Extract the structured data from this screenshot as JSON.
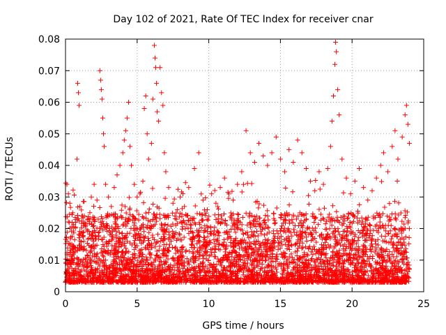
{
  "chart_data": {
    "type": "scatter",
    "title": "Day 102 of 2021, Rate Of TEC Index for receiver cnar",
    "xlabel": "GPS time / hours",
    "ylabel": "ROTI / TECUs",
    "xlim": [
      0,
      25
    ],
    "ylim": [
      0,
      0.08
    ],
    "x_ticks": [
      "0",
      "5",
      "10",
      "15",
      "20",
      "25"
    ],
    "y_ticks": [
      "0",
      "0.01",
      "0.02",
      "0.03",
      "0.04",
      "0.05",
      "0.06",
      "0.07",
      "0.08"
    ],
    "x_tick_values": [
      0,
      5,
      10,
      15,
      20,
      25
    ],
    "y_tick_values": [
      0,
      0.01,
      0.02,
      0.03,
      0.04,
      0.05,
      0.06,
      0.07,
      0.08
    ],
    "grid": true,
    "marker": "+",
    "color": "#ff0000",
    "series": [
      {
        "points": [
          [
            0.1,
            0.034
          ],
          [
            0.2,
            0.031
          ],
          [
            0.3,
            0.028
          ],
          [
            0.5,
            0.025
          ],
          [
            0.7,
            0.022
          ],
          [
            0.8,
            0.042
          ],
          [
            0.85,
            0.066
          ],
          [
            0.9,
            0.063
          ],
          [
            0.95,
            0.059
          ],
          [
            1.0,
            0.027
          ],
          [
            1.2,
            0.024
          ],
          [
            1.4,
            0.021
          ],
          [
            1.6,
            0.023
          ],
          [
            1.8,
            0.03
          ],
          [
            2.0,
            0.034
          ],
          [
            2.2,
            0.029
          ],
          [
            2.4,
            0.07
          ],
          [
            2.45,
            0.067
          ],
          [
            2.5,
            0.064
          ],
          [
            2.55,
            0.061
          ],
          [
            2.6,
            0.055
          ],
          [
            2.65,
            0.05
          ],
          [
            2.7,
            0.046
          ],
          [
            2.8,
            0.034
          ],
          [
            3.0,
            0.03
          ],
          [
            3.2,
            0.027
          ],
          [
            3.4,
            0.033
          ],
          [
            3.6,
            0.037
          ],
          [
            3.8,
            0.04
          ],
          [
            4.0,
            0.044
          ],
          [
            4.1,
            0.048
          ],
          [
            4.2,
            0.051
          ],
          [
            4.3,
            0.055
          ],
          [
            4.4,
            0.06
          ],
          [
            4.5,
            0.046
          ],
          [
            4.6,
            0.04
          ],
          [
            4.8,
            0.034
          ],
          [
            5.0,
            0.03
          ],
          [
            5.2,
            0.031
          ],
          [
            5.4,
            0.035
          ],
          [
            5.5,
            0.058
          ],
          [
            5.6,
            0.062
          ],
          [
            5.7,
            0.05
          ],
          [
            5.8,
            0.042
          ],
          [
            6.0,
            0.047
          ],
          [
            6.1,
            0.061
          ],
          [
            6.2,
            0.078
          ],
          [
            6.25,
            0.074
          ],
          [
            6.3,
            0.071
          ],
          [
            6.35,
            0.066
          ],
          [
            6.4,
            0.057
          ],
          [
            6.5,
            0.054
          ],
          [
            6.6,
            0.071
          ],
          [
            6.7,
            0.063
          ],
          [
            6.8,
            0.059
          ],
          [
            6.9,
            0.044
          ],
          [
            7.0,
            0.038
          ],
          [
            7.2,
            0.033
          ],
          [
            7.5,
            0.028
          ],
          [
            7.8,
            0.026
          ],
          [
            8.0,
            0.03
          ],
          [
            8.3,
            0.027
          ],
          [
            8.6,
            0.033
          ],
          [
            9.0,
            0.039
          ],
          [
            9.3,
            0.044
          ],
          [
            9.6,
            0.029
          ],
          [
            9.9,
            0.026
          ],
          [
            10.2,
            0.031
          ],
          [
            10.5,
            0.028
          ],
          [
            10.8,
            0.033
          ],
          [
            11.1,
            0.036
          ],
          [
            11.4,
            0.031
          ],
          [
            11.7,
            0.029
          ],
          [
            12.0,
            0.034
          ],
          [
            12.3,
            0.038
          ],
          [
            12.6,
            0.051
          ],
          [
            12.9,
            0.044
          ],
          [
            13.2,
            0.041
          ],
          [
            13.5,
            0.047
          ],
          [
            13.8,
            0.043
          ],
          [
            14.1,
            0.04
          ],
          [
            14.4,
            0.044
          ],
          [
            14.7,
            0.049
          ],
          [
            15.0,
            0.042
          ],
          [
            15.3,
            0.038
          ],
          [
            15.6,
            0.045
          ],
          [
            15.9,
            0.041
          ],
          [
            16.2,
            0.048
          ],
          [
            16.5,
            0.044
          ],
          [
            16.8,
            0.039
          ],
          [
            17.1,
            0.035
          ],
          [
            17.4,
            0.032
          ],
          [
            17.7,
            0.038
          ],
          [
            18.0,
            0.034
          ],
          [
            18.3,
            0.039
          ],
          [
            18.5,
            0.046
          ],
          [
            18.6,
            0.054
          ],
          [
            18.7,
            0.062
          ],
          [
            18.8,
            0.072
          ],
          [
            18.85,
            0.079
          ],
          [
            18.9,
            0.076
          ],
          [
            19.0,
            0.064
          ],
          [
            19.1,
            0.056
          ],
          [
            19.3,
            0.042
          ],
          [
            19.6,
            0.036
          ],
          [
            19.9,
            0.031
          ],
          [
            20.2,
            0.035
          ],
          [
            20.5,
            0.039
          ],
          [
            20.8,
            0.033
          ],
          [
            21.1,
            0.029
          ],
          [
            21.4,
            0.032
          ],
          [
            21.7,
            0.036
          ],
          [
            22.0,
            0.04
          ],
          [
            22.2,
            0.044
          ],
          [
            22.5,
            0.038
          ],
          [
            22.8,
            0.046
          ],
          [
            23.0,
            0.051
          ],
          [
            23.2,
            0.042
          ],
          [
            23.5,
            0.049
          ],
          [
            23.7,
            0.056
          ],
          [
            23.8,
            0.059
          ],
          [
            23.9,
            0.053
          ],
          [
            24.0,
            0.047
          ]
        ]
      }
    ]
  }
}
